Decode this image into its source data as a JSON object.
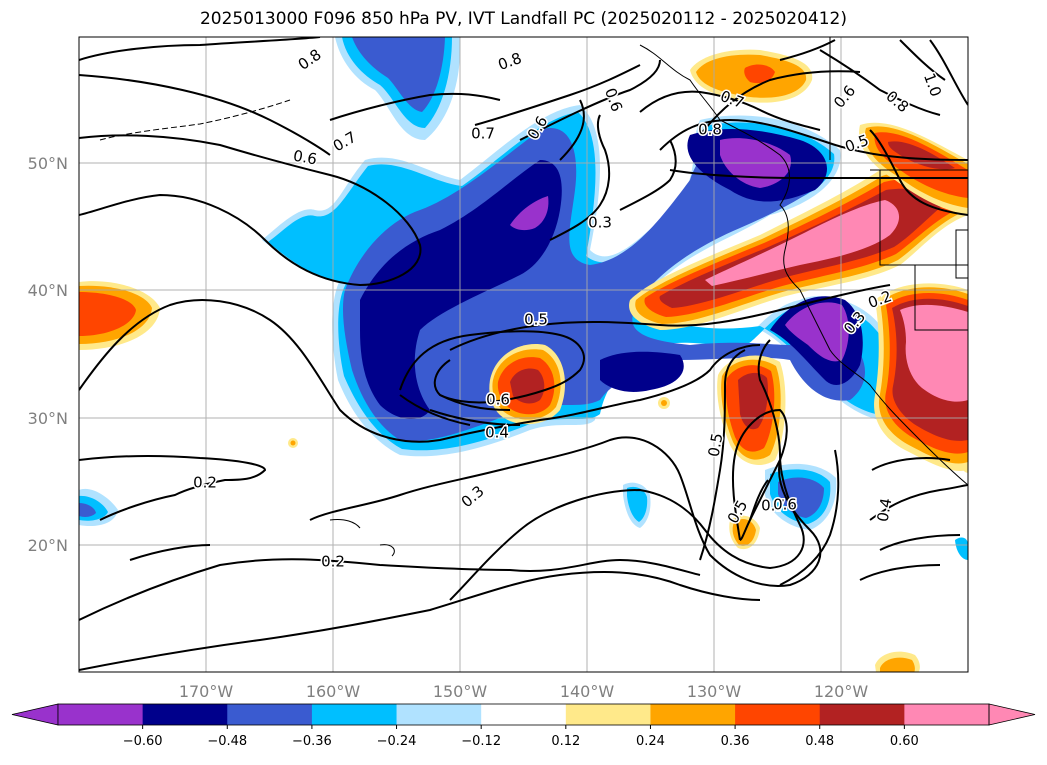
{
  "title": "2025013000 F096 850 hPa PV, IVT Landfall PC (2025020112 - 2025020412)",
  "map": {
    "lat_labels": [
      "50°N",
      "40°N",
      "30°N",
      "20°N"
    ],
    "lon_labels": [
      "170°W",
      "160°W",
      "150°W",
      "140°W",
      "130°W",
      "120°W"
    ],
    "contour_labels": [
      "0.8",
      "0.8",
      "0.6",
      "0.6",
      "0.7",
      "0.6",
      "0.7",
      "0.5",
      "0.3",
      "0.5",
      "0.6",
      "0.4",
      "0.3",
      "0.2",
      "0.2",
      "0.5",
      "0.7",
      "0.6",
      "0.2",
      "0.3",
      "0.4",
      "0.8",
      "1.0",
      "0.5",
      "0.7",
      "0.6",
      "0.8"
    ]
  },
  "colorbar": {
    "ticks": [
      "−0.60",
      "−0.48",
      "−0.36",
      "−0.24",
      "−0.12",
      "0.12",
      "0.24",
      "0.36",
      "0.48",
      "0.60"
    ],
    "colors": [
      "#9932cc",
      "#00008b",
      "#3a5bd0",
      "#00bfff",
      "#b0e2ff",
      "#ffffff",
      "#ffe98a",
      "#ffa500",
      "#ff4500",
      "#b22222",
      "#ff88b4",
      "#ff88b4"
    ]
  }
}
